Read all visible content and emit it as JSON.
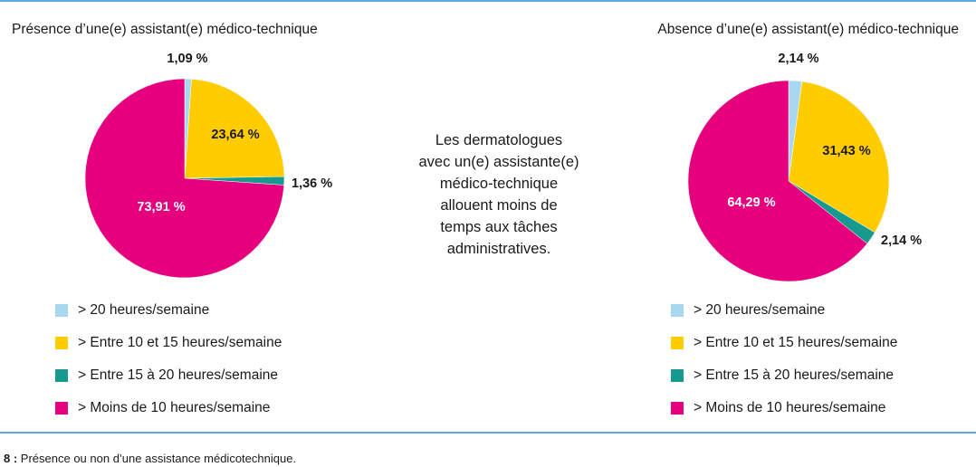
{
  "colors": {
    "light_blue": "#a8d8f0",
    "yellow": "#ffcc00",
    "teal": "#16998e",
    "magenta": "#e6007e",
    "rule": "#5aa9e0"
  },
  "legend": [
    {
      "label": ">  20 heures/semaine",
      "color": "#a8d8f0"
    },
    {
      "label": ">  Entre 10 et 15 heures/semaine",
      "color": "#ffcc00"
    },
    {
      "label": ">  Entre 15 à 20 heures/semaine",
      "color": "#16998e"
    },
    {
      "label": ">  Moins de 10 heures/semaine",
      "color": "#e6007e"
    }
  ],
  "center_text": "Les dermatologues\navec un(e) assistante(e)\nmédico-technique\nallouent moins de\ntemps aux tâches\nadministratives.",
  "caption": {
    "number": "8 :",
    "text": " Présence ou non d’une assistance médicotechnique."
  },
  "chart_data": [
    {
      "type": "pie",
      "title": "Présence d’une(e) assistant(e) médico-technique",
      "categories": [
        "> 20 heures/semaine",
        "Entre 10 et 15 heures/semaine",
        "Entre 15 à 20 heures/semaine",
        "Moins de 10 heures/semaine"
      ],
      "values": [
        1.09,
        23.64,
        1.36,
        73.91
      ],
      "labels": [
        "1,09 %",
        "23,64 %",
        "1,36 %",
        "73,91 %"
      ],
      "colors": [
        "#a8d8f0",
        "#ffcc00",
        "#16998e",
        "#e6007e"
      ],
      "legend_position": "bottom"
    },
    {
      "type": "pie",
      "title": "Absence d’une(e) assistant(e) médico-technique",
      "categories": [
        "> 20 heures/semaine",
        "Entre 10 et 15 heures/semaine",
        "Entre 15 à 20 heures/semaine",
        "Moins de 10 heures/semaine"
      ],
      "values": [
        2.14,
        31.43,
        2.14,
        64.29
      ],
      "labels": [
        "2,14 %",
        "31,43 %",
        "2,14 %",
        "64,29 %"
      ],
      "colors": [
        "#a8d8f0",
        "#ffcc00",
        "#16998e",
        "#e6007e"
      ],
      "legend_position": "bottom"
    }
  ]
}
